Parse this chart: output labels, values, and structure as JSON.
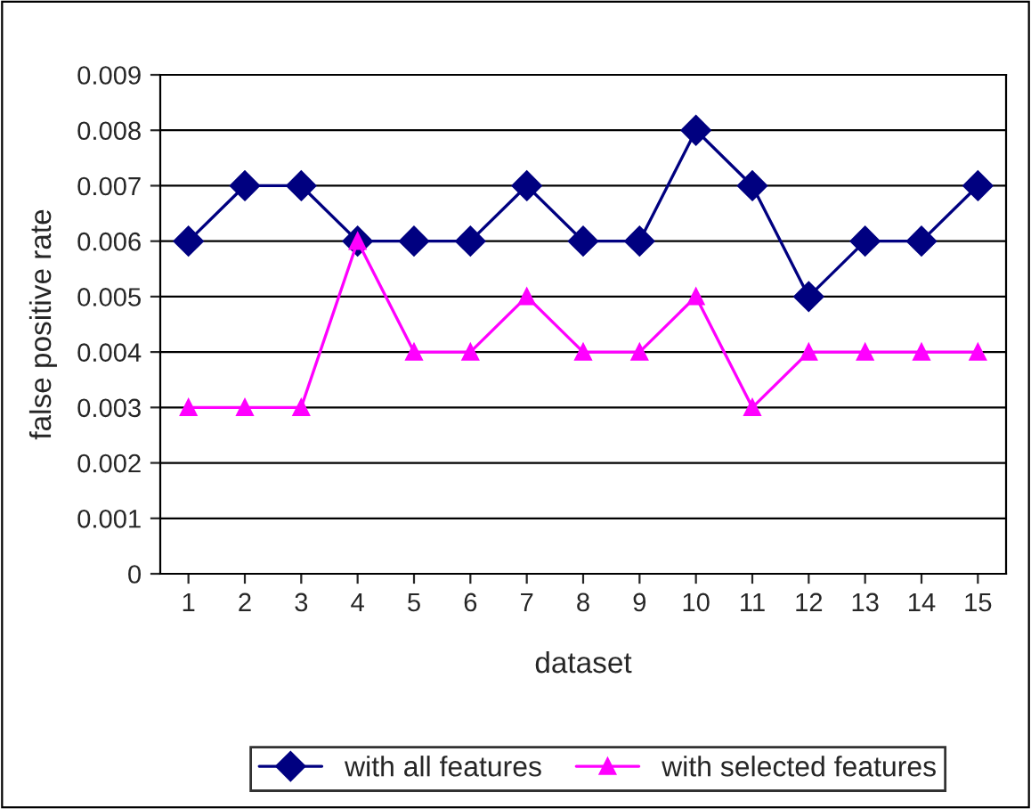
{
  "chart_data": {
    "type": "line",
    "xlabel": "dataset",
    "ylabel": "false positive rate",
    "categories": [
      "1",
      "2",
      "3",
      "4",
      "5",
      "6",
      "7",
      "8",
      "9",
      "10",
      "11",
      "12",
      "13",
      "14",
      "15"
    ],
    "series": [
      {
        "name": "with all features",
        "color": "#000080",
        "marker": "diamond",
        "values": [
          0.006,
          0.007,
          0.007,
          0.006,
          0.006,
          0.006,
          0.007,
          0.006,
          0.006,
          0.008,
          0.007,
          0.005,
          0.006,
          0.006,
          0.007
        ]
      },
      {
        "name": "with selected features",
        "color": "#ff00ff",
        "marker": "triangle",
        "values": [
          0.003,
          0.003,
          0.003,
          0.006,
          0.004,
          0.004,
          0.005,
          0.004,
          0.004,
          0.005,
          0.003,
          0.004,
          0.004,
          0.004,
          0.004
        ]
      }
    ],
    "ylim": [
      0,
      0.009
    ],
    "yticks": [
      0,
      0.001,
      0.002,
      0.003,
      0.004,
      0.005,
      0.006,
      0.007,
      0.008,
      0.009
    ],
    "grid": "y",
    "legend": "bottom",
    "line_style": "solid"
  }
}
